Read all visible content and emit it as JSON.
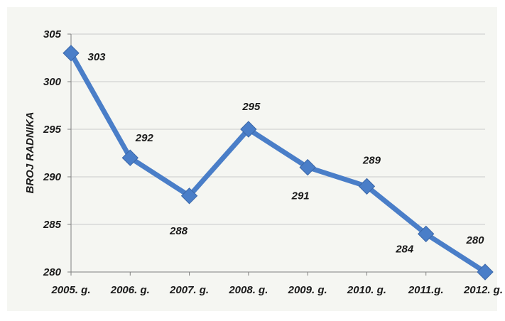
{
  "chart_data": {
    "type": "line",
    "title": "",
    "xlabel": "",
    "ylabel": "BROJ RADNIKA",
    "categories": [
      "2005. g.",
      "2006. g.",
      "2007. g.",
      "2008. g.",
      "2009. g.",
      "2010. g.",
      "2011.g.",
      "2012. g."
    ],
    "series": [
      {
        "values": [
          303,
          292,
          288,
          295,
          291,
          289,
          284,
          280
        ],
        "data_labels": [
          "303",
          "292",
          "288",
          "295",
          "291",
          "289",
          "284",
          "280"
        ],
        "color": "#4a7ec8",
        "marker": "diamond"
      }
    ],
    "ylim": [
      280,
      305
    ],
    "yticks": [
      "280",
      "285",
      "290",
      "295",
      "300",
      "305"
    ],
    "grid": true,
    "legend": "none"
  },
  "colors": {
    "line": "#4a7ec8",
    "marker": "#4a7ec8",
    "plot_background": "#f5f6f2",
    "gridline": "#c9c9c9"
  }
}
